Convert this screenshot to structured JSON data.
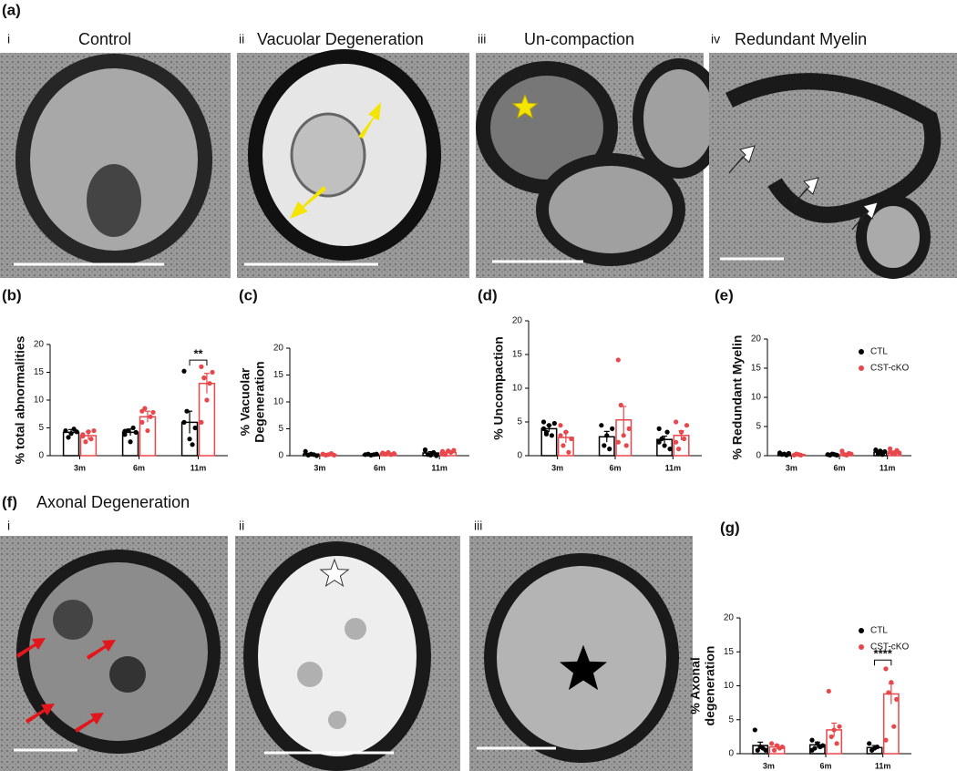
{
  "panel_a": {
    "label": "(a)",
    "images": [
      {
        "numeral": "i",
        "title": "Control"
      },
      {
        "numeral": "ii",
        "title": "Vacuolar Degeneration"
      },
      {
        "numeral": "iii",
        "title": "Un-compaction"
      },
      {
        "numeral": "iv",
        "title": "Redundant Myelin"
      }
    ]
  },
  "panel_f": {
    "label": "(f)",
    "title": "Axonal Degeneration",
    "images": [
      {
        "numeral": "i"
      },
      {
        "numeral": "ii"
      },
      {
        "numeral": "iii"
      }
    ]
  },
  "chart_data": [
    {
      "type": "bar",
      "panel": "(b)",
      "ylabel": [
        "% total abnormalities"
      ],
      "categories": [
        "3m",
        "6m",
        "11m"
      ],
      "ylim": [
        0,
        20
      ],
      "yticks": [
        0,
        5,
        10,
        15,
        20
      ],
      "legend": false,
      "series": [
        {
          "name": "CTL",
          "color": "#000000",
          "values": [
            4.2,
            4.2,
            6.0
          ],
          "errors": [
            0.5,
            0.6,
            2.0
          ],
          "points": [
            [
              4.5,
              3.3,
              4.0,
              4.8,
              4.3
            ],
            [
              3.8,
              4.5,
              2.5,
              5.0,
              4.2,
              4.4
            ],
            [
              15.2,
              8.0,
              3.0,
              2.0,
              5.0,
              6.0
            ]
          ]
        },
        {
          "name": "CST-cKO",
          "color": "#e8474b",
          "values": [
            3.6,
            7.0,
            13.0
          ],
          "errors": [
            0.7,
            1.0,
            1.8
          ],
          "points": [
            [
              3.5,
              2.5,
              4.3,
              3.0,
              4.5,
              3.8
            ],
            [
              6.0,
              8.5,
              4.5,
              7.0,
              7.8,
              8.0
            ],
            [
              16.0,
              14.0,
              10.0,
              13.0,
              15.0,
              6.0,
              14.0
            ]
          ]
        }
      ],
      "annotations": [
        {
          "text": "**",
          "category": 2,
          "y": 17.2
        }
      ]
    },
    {
      "type": "bar",
      "panel": "(c)",
      "ylabel": [
        "% Vacuolar",
        "Degeneration"
      ],
      "categories": [
        "3m",
        "6m",
        "11m"
      ],
      "ylim": [
        0,
        20
      ],
      "yticks": [
        0,
        5,
        10,
        15,
        20
      ],
      "legend": false,
      "series": [
        {
          "name": "CTL",
          "color": "#000000",
          "values": [
            0.3,
            0.2,
            0.5
          ],
          "errors": [
            0.15,
            0.05,
            0.25
          ],
          "points": [
            [
              0.8,
              0.1,
              0.3,
              0.2,
              0.0
            ],
            [
              0.2,
              0.3,
              0.1,
              0.2,
              0.3
            ],
            [
              1.0,
              0.2,
              0.1,
              0.6,
              0.0,
              1.1
            ]
          ]
        },
        {
          "name": "CST-cKO",
          "color": "#e8474b",
          "values": [
            0.2,
            0.4,
            0.6
          ],
          "errors": [
            0.1,
            0.1,
            0.2
          ],
          "points": [
            [
              0.3,
              0.1,
              0.2,
              0.4,
              0.1
            ],
            [
              0.5,
              0.3,
              0.6,
              0.2,
              0.4,
              0.5
            ],
            [
              0.8,
              0.2,
              0.9,
              0.6,
              1.0,
              0.3
            ]
          ]
        }
      ],
      "annotations": []
    },
    {
      "type": "bar",
      "panel": "(d)",
      "ylabel": [
        "% Uncompaction"
      ],
      "categories": [
        "3m",
        "6m",
        "11m"
      ],
      "ylim": [
        0,
        20
      ],
      "yticks": [
        0,
        5,
        10,
        15,
        20
      ],
      "legend": false,
      "series": [
        {
          "name": "CTL",
          "color": "#000000",
          "values": [
            4.0,
            2.8,
            2.4
          ],
          "errors": [
            0.5,
            0.8,
            0.5
          ],
          "points": [
            [
              5.0,
              3.5,
              4.5,
              3.0,
              4.8,
              4.0,
              3.2
            ],
            [
              4.5,
              1.5,
              3.0,
              1.0,
              4.0
            ],
            [
              4.0,
              2.5,
              1.5,
              3.5,
              1.0,
              2.0
            ]
          ]
        },
        {
          "name": "CST-cKO",
          "color": "#e8474b",
          "values": [
            2.7,
            5.3,
            3.0
          ],
          "errors": [
            0.8,
            2.0,
            0.7
          ],
          "points": [
            [
              4.5,
              1.5,
              3.5,
              0.5,
              2.5,
              3.0
            ],
            [
              14.2,
              7.5,
              3.0,
              1.5,
              4.0,
              2.0
            ],
            [
              5.0,
              1.0,
              3.5,
              2.5,
              4.5,
              2.0
            ]
          ]
        }
      ],
      "annotations": []
    },
    {
      "type": "bar",
      "panel": "(e)",
      "ylabel": [
        "% Redundant Myelin"
      ],
      "categories": [
        "3m",
        "6m",
        "11m"
      ],
      "ylim": [
        0,
        20
      ],
      "yticks": [
        0,
        5,
        10,
        15,
        20
      ],
      "legend": true,
      "series": [
        {
          "name": "CTL",
          "color": "#000000",
          "values": [
            0.3,
            0.2,
            0.6
          ],
          "errors": [
            0.1,
            0.05,
            0.2
          ],
          "points": [
            [
              0.5,
              0.2,
              0.3,
              0.1,
              0.4
            ],
            [
              0.2,
              0.1,
              0.3,
              0.2,
              0.1
            ],
            [
              1.0,
              0.3,
              0.8,
              0.2,
              0.7
            ]
          ]
        },
        {
          "name": "CST-cKO",
          "color": "#e8474b",
          "values": [
            0.2,
            0.3,
            0.6
          ],
          "errors": [
            0.1,
            0.1,
            0.2
          ],
          "points": [
            [
              0.1,
              0.3,
              0.2,
              0.1
            ],
            [
              0.8,
              0.2,
              0.1,
              0.4,
              0.3
            ],
            [
              1.2,
              0.4,
              0.3,
              0.9,
              0.5,
              0.6
            ]
          ]
        }
      ],
      "annotations": []
    },
    {
      "type": "bar",
      "panel": "(g)",
      "ylabel": [
        "% Axonal",
        "degeneration"
      ],
      "categories": [
        "3m",
        "6m",
        "11m"
      ],
      "ylim": [
        0,
        20
      ],
      "yticks": [
        0,
        5,
        10,
        15,
        20
      ],
      "legend": true,
      "series": [
        {
          "name": "CTL",
          "color": "#000000",
          "values": [
            1.2,
            1.3,
            0.9
          ],
          "errors": [
            0.5,
            0.4,
            0.3
          ],
          "points": [
            [
              3.5,
              0.5,
              1.0,
              0.8,
              0.5
            ],
            [
              2.0,
              0.8,
              1.5,
              1.0,
              1.2,
              0.5
            ],
            [
              1.5,
              0.5,
              0.8,
              1.0
            ]
          ]
        },
        {
          "name": "CST-cKO",
          "color": "#e8474b",
          "values": [
            1.0,
            3.5,
            8.8
          ],
          "errors": [
            0.3,
            1.0,
            1.5
          ],
          "points": [
            [
              1.5,
              0.5,
              1.2,
              0.8,
              1.0
            ],
            [
              9.2,
              2.5,
              3.5,
              1.5,
              4.0
            ],
            [
              12.5,
              9.0,
              10.5,
              4.0,
              8.0,
              2.0
            ]
          ]
        }
      ],
      "annotations": [
        {
          "text": "****",
          "category": 2,
          "y": 13.8
        }
      ]
    }
  ]
}
